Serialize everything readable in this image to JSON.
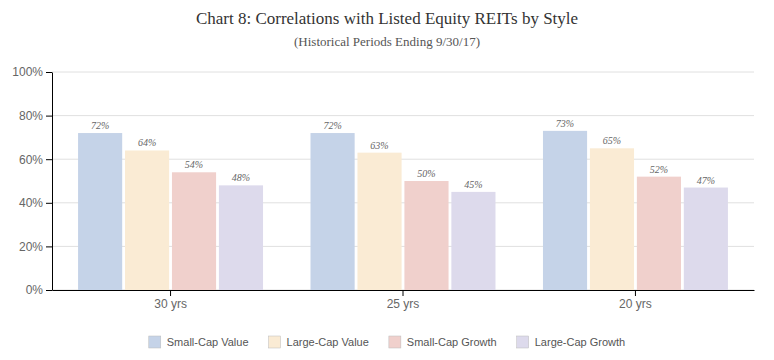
{
  "chart_data": {
    "type": "bar",
    "title": "Chart 8: Correlations with Listed Equity REITs by Style",
    "subtitle": "(Historical Periods Ending 9/30/17)",
    "categories": [
      "30 yrs",
      "25 yrs",
      "20 yrs"
    ],
    "series": [
      {
        "name": "Small-Cap Value",
        "color": "#c5d3e8",
        "values": [
          0.72,
          0.72,
          0.73
        ],
        "value_labels": [
          "72%",
          "72%",
          "73%"
        ]
      },
      {
        "name": "Large-Cap Value",
        "color": "#faebd4",
        "values": [
          0.64,
          0.63,
          0.65
        ],
        "value_labels": [
          "64%",
          "63%",
          "65%"
        ]
      },
      {
        "name": "Small-Cap Growth",
        "color": "#f0d0cc",
        "values": [
          0.54,
          0.5,
          0.52
        ],
        "value_labels": [
          "54%",
          "50%",
          "52%"
        ]
      },
      {
        "name": "Large-Cap Growth",
        "color": "#dddaec",
        "values": [
          0.48,
          0.45,
          0.47
        ],
        "value_labels": [
          "48%",
          "45%",
          "47%"
        ]
      }
    ],
    "ylim": [
      0,
      1.0
    ],
    "yticks": [
      {
        "value": 0,
        "label": "0%"
      },
      {
        "value": 0.2,
        "label": "20%"
      },
      {
        "value": 0.4,
        "label": "40%"
      },
      {
        "value": 0.6,
        "label": "60%"
      },
      {
        "value": 0.8,
        "label": "80%"
      },
      {
        "value": 1.0,
        "label": "100%"
      }
    ],
    "grid": true,
    "legend": "bottom",
    "data_labels": true
  }
}
